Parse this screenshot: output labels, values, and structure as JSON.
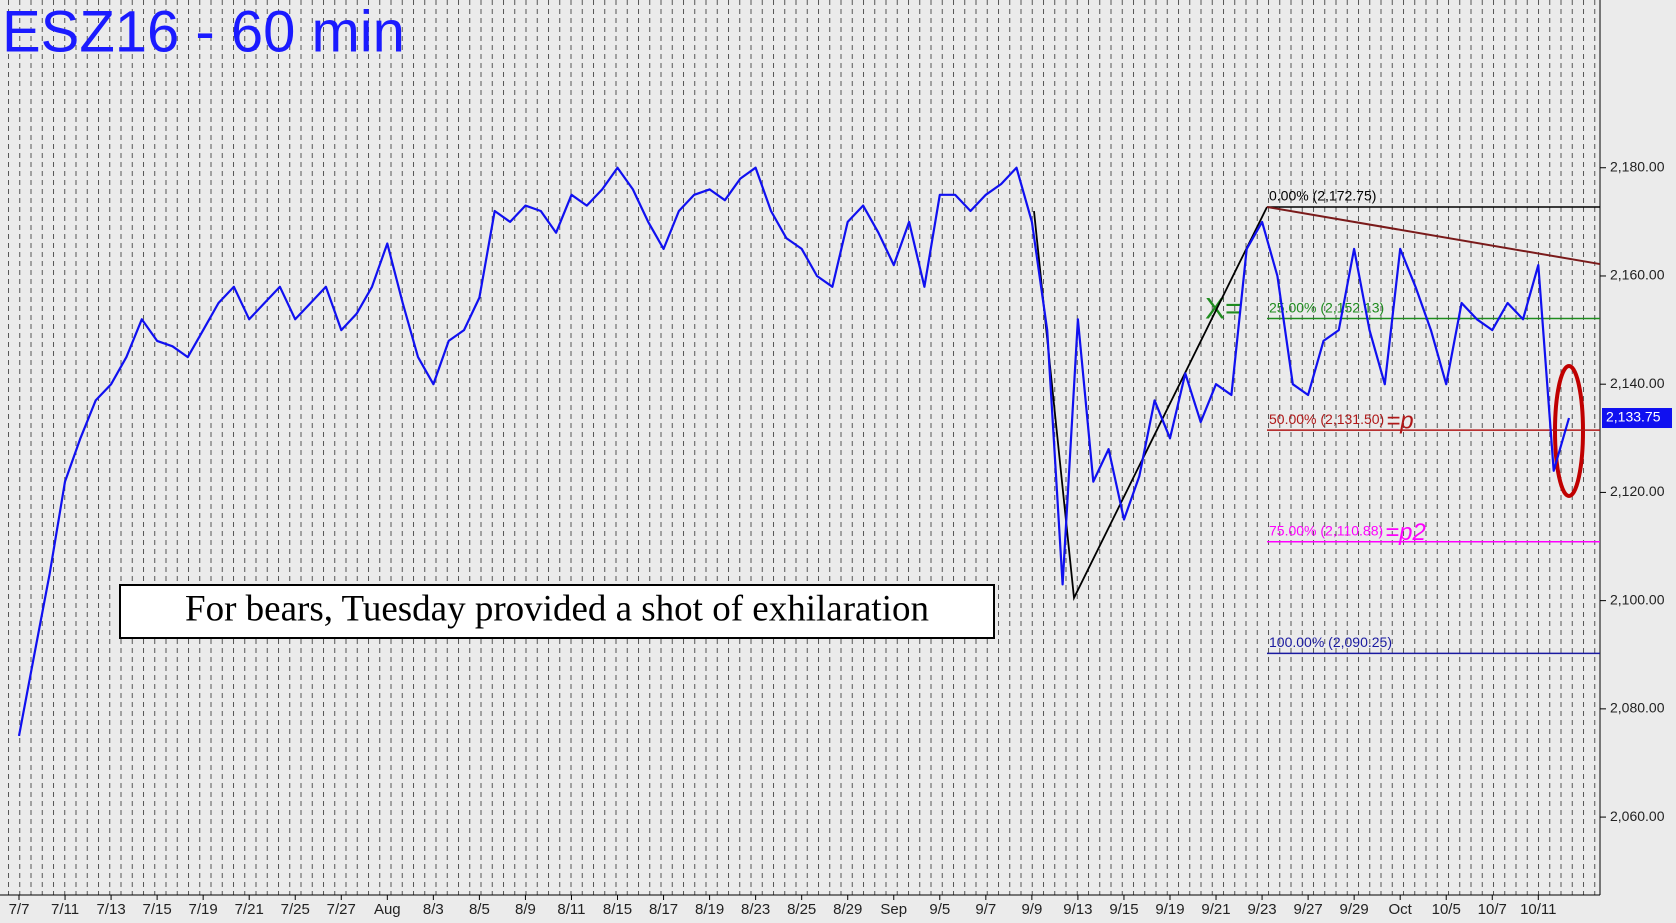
{
  "chart_data": {
    "type": "line",
    "title": "ESZ16 - 60 min",
    "annotation": "For bears, Tuesday provided a shot of exhilaration",
    "categories": [
      "7/7",
      null,
      null,
      "7/11",
      null,
      null,
      "7/13",
      null,
      null,
      "7/15",
      null,
      null,
      "7/19",
      null,
      null,
      "7/21",
      null,
      null,
      "7/25",
      null,
      null,
      "7/27",
      null,
      null,
      "Aug",
      null,
      null,
      "8/3",
      null,
      null,
      "8/5",
      null,
      null,
      "8/9",
      null,
      null,
      "8/11",
      null,
      null,
      "8/15",
      null,
      null,
      "8/17",
      null,
      null,
      "8/19",
      null,
      null,
      "8/23",
      null,
      null,
      "8/25",
      null,
      null,
      "8/29",
      null,
      null,
      "Sep",
      null,
      null,
      "9/5",
      null,
      null,
      "9/7",
      null,
      null,
      "9/9",
      null,
      null,
      "9/13",
      null,
      null,
      "9/15",
      null,
      null,
      "9/19",
      null,
      null,
      "9/21",
      null,
      null,
      "9/23",
      null,
      null,
      "9/27",
      null,
      null,
      "9/29",
      null,
      null,
      "Oct",
      null,
      null,
      "10/5",
      null,
      null,
      "10/7",
      null,
      null,
      "10/11",
      null,
      null
    ],
    "series": [
      {
        "color": "#1010f0",
        "values": [
          2075,
          2090,
          2105,
          2122,
          2130,
          2137,
          2140,
          2145,
          2152,
          2148,
          2147,
          2145,
          2150,
          2155,
          2158,
          2152,
          2155,
          2158,
          2152,
          2155,
          2158,
          2150,
          2153,
          2158,
          2166,
          2155,
          2145,
          2140,
          2148,
          2150,
          2156,
          2172,
          2170,
          2173,
          2172,
          2168,
          2175,
          2173,
          2176,
          2180,
          2176,
          2170,
          2165,
          2172,
          2175,
          2176,
          2174,
          2178,
          2180,
          2172,
          2167,
          2165,
          2160,
          2158,
          2170,
          2173,
          2168,
          2162,
          2170,
          2158,
          2175,
          2175,
          2172,
          2175,
          2177,
          2180,
          2170,
          2150,
          2103,
          2152,
          2122,
          2128,
          2115,
          2123,
          2137,
          2130,
          2142,
          2133,
          2140,
          2138,
          2165,
          2170,
          2160,
          2140,
          2138,
          2148,
          2150,
          2165,
          2150,
          2140,
          2165,
          2158,
          2150,
          2140,
          2155,
          2152,
          2150,
          2155,
          2152,
          2162,
          2124,
          2133.75
        ]
      }
    ],
    "ylim": [
      2045.6,
      2211
    ],
    "yticks": [
      {
        "value": 2060,
        "label": "2,060.00"
      },
      {
        "value": 2080,
        "label": "2,080.00"
      },
      {
        "value": 2100,
        "label": "2,100.00"
      },
      {
        "value": 2120,
        "label": "2,120.00"
      },
      {
        "value": 2140,
        "label": "2,140.00"
      },
      {
        "value": 2160,
        "label": "2,160.00"
      },
      {
        "value": 2180,
        "label": "2,180.00"
      }
    ],
    "last_price": {
      "value": 2133.75,
      "label": "2,133.75"
    },
    "levels": [
      {
        "label": "0.00% (2,172.75)",
        "value": 2172.75,
        "color": "#000000"
      },
      {
        "label": "25.00% (2,152.13)",
        "value": 2152.13,
        "color": "#1e8c1e",
        "tag": "X="
      },
      {
        "label": "50.00% (2,131.50)",
        "value": 2131.5,
        "color": "#b01818",
        "tag": "=p"
      },
      {
        "label": "75.00% (2,110.88)",
        "value": 2110.88,
        "color": "#ff00ff",
        "tag": "=p2"
      },
      {
        "label": "100.00% (2,090.25)",
        "value": 2090.25,
        "color": "#1a1aa0"
      }
    ],
    "pattern": [
      2172,
      2100.5,
      2172.75
    ],
    "resistance": [
      2172.75,
      2162.2
    ]
  }
}
